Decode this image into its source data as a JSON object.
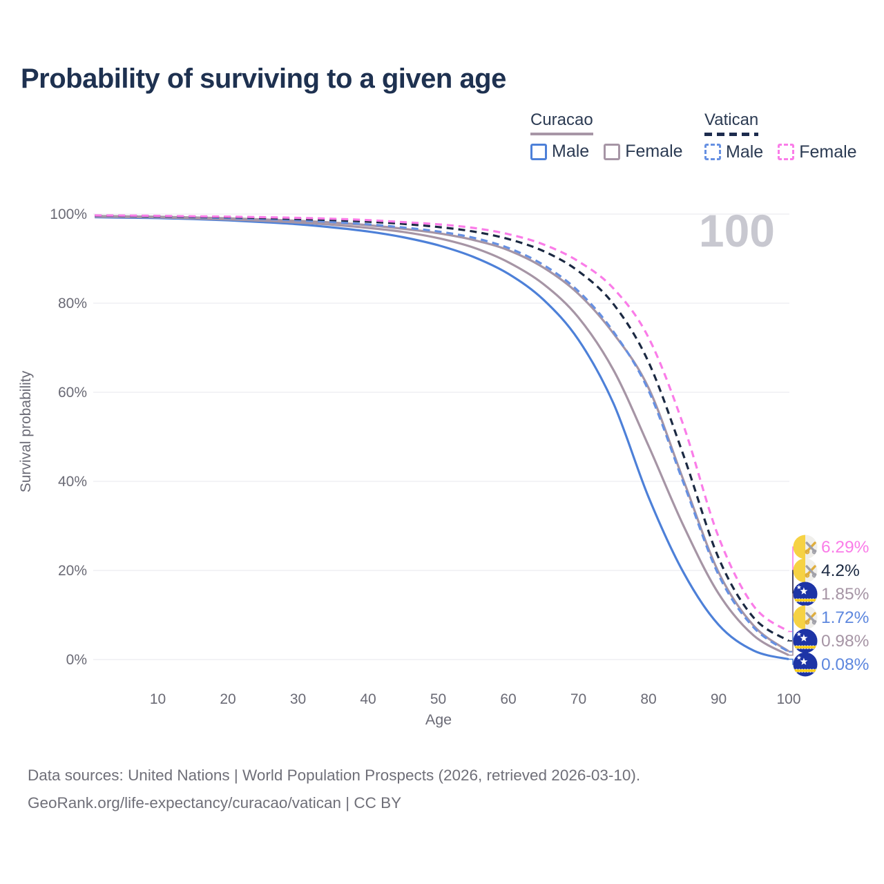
{
  "title": "Probability of surviving to a given age",
  "legend": {
    "curacao": {
      "label": "Curacao",
      "male": "Male",
      "female": "Female"
    },
    "vatican": {
      "label": "Vatican",
      "male": "Male",
      "female": "Female"
    }
  },
  "watermark": "100",
  "footer": {
    "line1": "Data sources: United Nations | World Population Prospects (2026, retrieved 2026-03-10).",
    "line2": "GeoRank.org/life-expectancy/curacao/vatican | CC BY"
  },
  "colors": {
    "title": "#1e3150",
    "axis_text": "#6a6a75",
    "grid": "#ececf1",
    "watermark": "#c8c8d0",
    "curacao_male": "#4d80d8",
    "curacao_mauve": "#a695a5",
    "vatican_male": "#6690e2",
    "vatican_all": "#1b2942",
    "vatican_female": "#fa7ce8",
    "blue_label": "#5d87de"
  },
  "chart_data": {
    "type": "line",
    "title": "Probability of surviving to a given age",
    "xlabel": "Age",
    "ylabel": "Survival probability",
    "xlim": [
      0,
      100
    ],
    "ylim": [
      0,
      100
    ],
    "grid": "on",
    "legend_position": "top-right",
    "x_ticks": [
      10,
      20,
      30,
      40,
      50,
      60,
      70,
      80,
      90,
      100
    ],
    "y_ticks": [
      0,
      20,
      40,
      60,
      80,
      100
    ],
    "y_tick_labels": [
      "0%",
      "20%",
      "40%",
      "60%",
      "80%",
      "100%"
    ],
    "x": [
      1,
      5,
      10,
      15,
      20,
      25,
      30,
      35,
      40,
      45,
      50,
      55,
      60,
      65,
      70,
      75,
      80,
      85,
      90,
      95,
      100
    ],
    "series": [
      {
        "name": "Curacao Male",
        "country": "curacao",
        "style": "solid",
        "color_key": "curacao_male",
        "label_color_key": "blue_label",
        "end_label": "0.08%",
        "end_value": 0.08,
        "values": [
          99.3,
          99.2,
          99.1,
          98.9,
          98.6,
          98.2,
          97.7,
          97.0,
          96.1,
          94.8,
          93.0,
          90.4,
          86.6,
          80.8,
          71.8,
          57.5,
          36.5,
          19.5,
          7.8,
          2.0,
          0.08
        ]
      },
      {
        "name": "Curacao",
        "country": "curacao",
        "style": "solid",
        "color_key": "curacao_mauve",
        "label_color_key": "curacao_mauve",
        "end_label": "0.98%",
        "end_value": 0.98,
        "values": [
          99.4,
          99.35,
          99.25,
          99.05,
          98.8,
          98.5,
          98.1,
          97.6,
          96.9,
          96.0,
          94.6,
          92.5,
          89.2,
          84.3,
          76.8,
          65.0,
          48.0,
          30.0,
          14.8,
          5.4,
          0.98
        ]
      },
      {
        "name": "Curacao Female",
        "country": "curacao",
        "style": "solid",
        "color_key": "curacao_mauve",
        "label_color_key": "curacao_mauve",
        "end_label": "1.85%",
        "end_value": 1.85,
        "values": [
          99.55,
          99.5,
          99.4,
          99.25,
          99.05,
          98.8,
          98.5,
          98.1,
          97.5,
          96.7,
          95.7,
          94.2,
          91.9,
          88.0,
          82.1,
          73.2,
          61.0,
          40.2,
          19.6,
          7.6,
          1.85
        ]
      },
      {
        "name": "Vatican Male",
        "country": "vatican",
        "style": "dashed",
        "color_key": "vatican_male",
        "label_color_key": "blue_label",
        "end_label": "1.72%",
        "end_value": 1.72,
        "values": [
          99.6,
          99.55,
          99.45,
          99.3,
          99.1,
          98.9,
          98.6,
          98.2,
          97.7,
          97.0,
          96.1,
          94.7,
          92.4,
          88.6,
          82.7,
          73.6,
          60.4,
          39.6,
          19.0,
          7.2,
          1.72
        ]
      },
      {
        "name": "Vatican",
        "country": "vatican",
        "style": "dashed",
        "color_key": "vatican_all",
        "label_color_key": "vatican_all",
        "end_label": "4.2%",
        "end_value": 4.2,
        "values": [
          99.65,
          99.6,
          99.5,
          99.4,
          99.3,
          99.1,
          98.9,
          98.65,
          98.3,
          97.8,
          97.1,
          96.1,
          94.4,
          91.7,
          87.2,
          79.8,
          66.8,
          45.8,
          22.8,
          9.4,
          4.2
        ]
      },
      {
        "name": "Vatican Female",
        "country": "vatican",
        "style": "dashed",
        "color_key": "vatican_female",
        "label_color_key": "vatican_female",
        "end_label": "6.29%",
        "end_value": 6.29,
        "values": [
          99.7,
          99.68,
          99.6,
          99.5,
          99.42,
          99.3,
          99.15,
          98.95,
          98.65,
          98.2,
          97.7,
          96.9,
          95.5,
          93.2,
          89.4,
          83.3,
          72.3,
          52.5,
          27.5,
          12.0,
          6.29
        ]
      }
    ]
  }
}
